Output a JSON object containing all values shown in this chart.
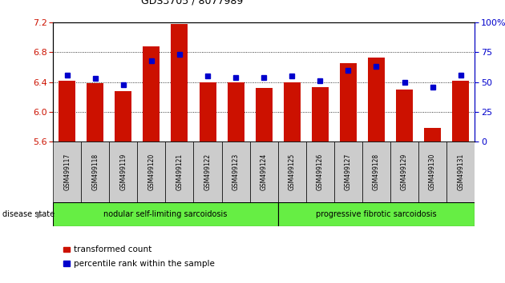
{
  "title": "GDS3705 / 8077989",
  "samples": [
    "GSM499117",
    "GSM499118",
    "GSM499119",
    "GSM499120",
    "GSM499121",
    "GSM499122",
    "GSM499123",
    "GSM499124",
    "GSM499125",
    "GSM499126",
    "GSM499127",
    "GSM499128",
    "GSM499129",
    "GSM499130",
    "GSM499131"
  ],
  "transformed_counts": [
    6.42,
    6.39,
    6.28,
    6.88,
    7.18,
    6.4,
    6.4,
    6.32,
    6.4,
    6.33,
    6.65,
    6.73,
    6.3,
    5.78,
    6.42
  ],
  "percentile_ranks": [
    56,
    53,
    48,
    68,
    73,
    55,
    54,
    54,
    55,
    51,
    60,
    63,
    50,
    46,
    56
  ],
  "ymin": 5.6,
  "ymax": 7.2,
  "yticks": [
    5.6,
    6.0,
    6.4,
    6.8,
    7.2
  ],
  "right_yticks": [
    0,
    25,
    50,
    75,
    100
  ],
  "right_ylabels": [
    "0",
    "25",
    "50",
    "75",
    "100%"
  ],
  "bar_color": "#cc1100",
  "dot_color": "#0000cc",
  "bg_color": "#ffffff",
  "group1_label": "nodular self-limiting sarcoidosis",
  "group1_count": 8,
  "group2_label": "progressive fibrotic sarcoidosis",
  "group2_count": 7,
  "group_bg_color": "#66ee44",
  "tick_label_bg": "#cccccc",
  "legend_bar_label": "transformed count",
  "legend_dot_label": "percentile rank within the sample",
  "disease_state_label": "disease state"
}
